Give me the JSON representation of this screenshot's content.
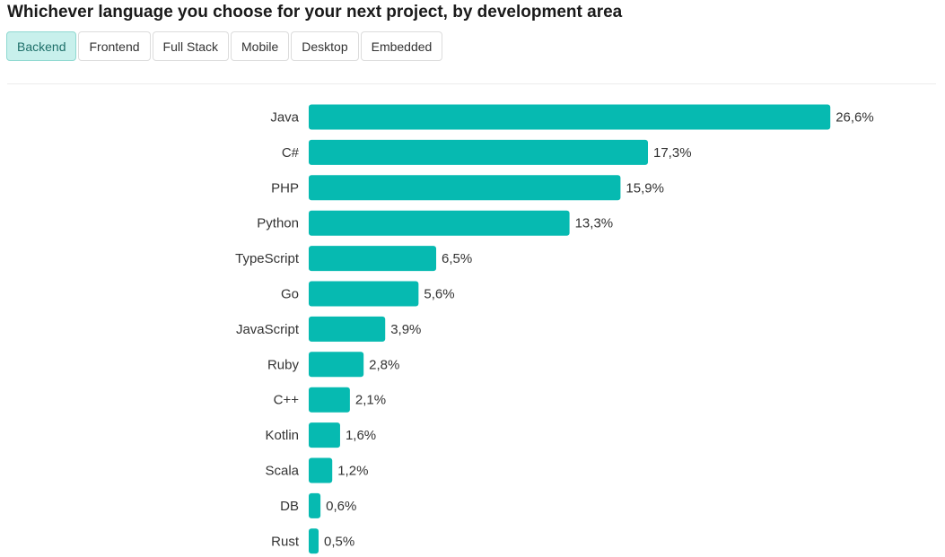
{
  "title": "Whichever language you choose for your next project, by development area",
  "tabs": [
    {
      "label": "Backend",
      "active": true
    },
    {
      "label": "Frontend",
      "active": false
    },
    {
      "label": "Full Stack",
      "active": false
    },
    {
      "label": "Mobile",
      "active": false
    },
    {
      "label": "Desktop",
      "active": false
    },
    {
      "label": "Embedded",
      "active": false
    }
  ],
  "colors": {
    "bar": "#06bab1"
  },
  "chart_data": {
    "type": "bar",
    "orientation": "horizontal",
    "categories": [
      "Java",
      "C#",
      "PHP",
      "Python",
      "TypeScript",
      "Go",
      "JavaScript",
      "Ruby",
      "C++",
      "Kotlin",
      "Scala",
      "DB",
      "Rust"
    ],
    "values": [
      26.6,
      17.3,
      15.9,
      13.3,
      6.5,
      5.6,
      3.9,
      2.8,
      2.1,
      1.6,
      1.2,
      0.6,
      0.5
    ],
    "value_labels": [
      "26,6%",
      "17,3%",
      "15,9%",
      "13,3%",
      "6,5%",
      "5,6%",
      "3,9%",
      "2,8%",
      "2,1%",
      "1,6%",
      "1,2%",
      "0,6%",
      "0,5%"
    ],
    "unit": "%",
    "grid": false,
    "legend": "none"
  }
}
